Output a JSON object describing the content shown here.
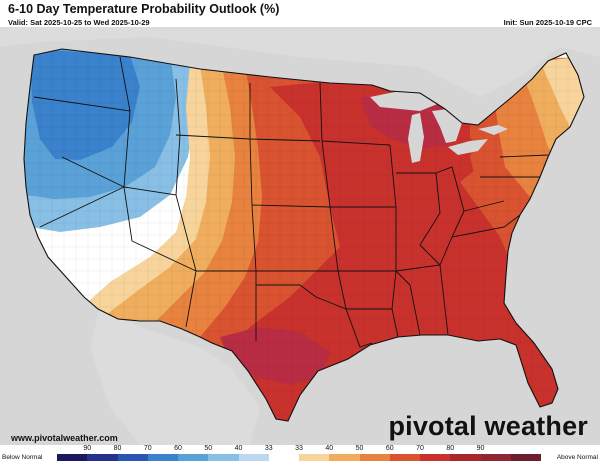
{
  "header": {
    "title": "6-10 Day Temperature Probability Outlook (%)",
    "valid": "Valid: Sat 2025-10-25 to Wed 2025-10-29",
    "init": "Init: Sun 2025-10-19 CPC"
  },
  "footer": {
    "website": "www.pivotalweather.com",
    "brand": "pivotal weather"
  },
  "legend": {
    "below_label": "Below Normal",
    "above_label": "Above Normal",
    "ticks": [
      "90",
      "80",
      "70",
      "60",
      "50",
      "40",
      "33",
      "33",
      "40",
      "50",
      "60",
      "70",
      "80",
      "90"
    ],
    "colors": [
      "#1c1a5c",
      "#25318a",
      "#2a55b3",
      "#3a82cc",
      "#5aa1d8",
      "#88bfe4",
      "#bcd7ee",
      "#ffffff",
      "#f7d49b",
      "#efad5d",
      "#e8823f",
      "#d95330",
      "#c8312c",
      "#a8282a",
      "#8f2632",
      "#6d1f2e"
    ]
  },
  "map": {
    "colors": {
      "background": "#d6d6d6",
      "land": "#ffffff",
      "water": "#d6d6d6",
      "below_strong": "#3a82cc",
      "below_moderate": "#5aa1d8",
      "below_light": "#88bfe4",
      "near_normal": "#ffffff",
      "above_33": "#f7d49b",
      "above_40": "#efad5d",
      "above_50": "#e8823f",
      "above_60": "#d95330",
      "above_70": "#c8312c",
      "above_80": "#b82c44"
    }
  }
}
